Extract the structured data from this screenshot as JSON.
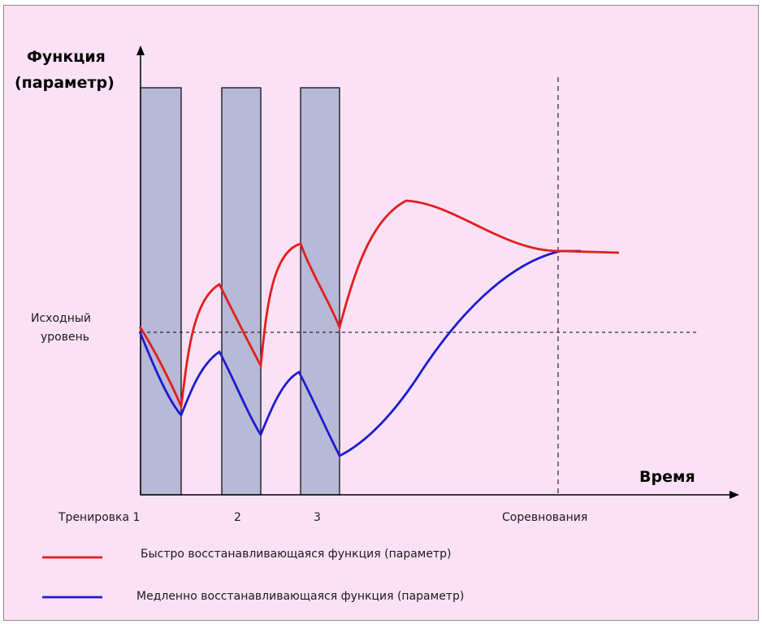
{
  "colors": {
    "background": "#fbe1f5",
    "training_block": "#b7b9d6",
    "fast_line": "#e31e1e",
    "slow_line": "#1c1ccf"
  },
  "axes": {
    "y_title_line1": "Функция",
    "y_title_line2": "(параметр)",
    "x_title": "Время",
    "baseline_label_line1": "Исходный",
    "baseline_label_line2": "уровень"
  },
  "x_labels": {
    "t1": "Тренировка 1",
    "t2": "2",
    "t3": "3",
    "competition": "Соревнования"
  },
  "legend": {
    "fast": "Быстро восстанавливающаяся функция (параметр)",
    "slow": "Медленно восстанавливающаяся функция (параметр)"
  }
}
